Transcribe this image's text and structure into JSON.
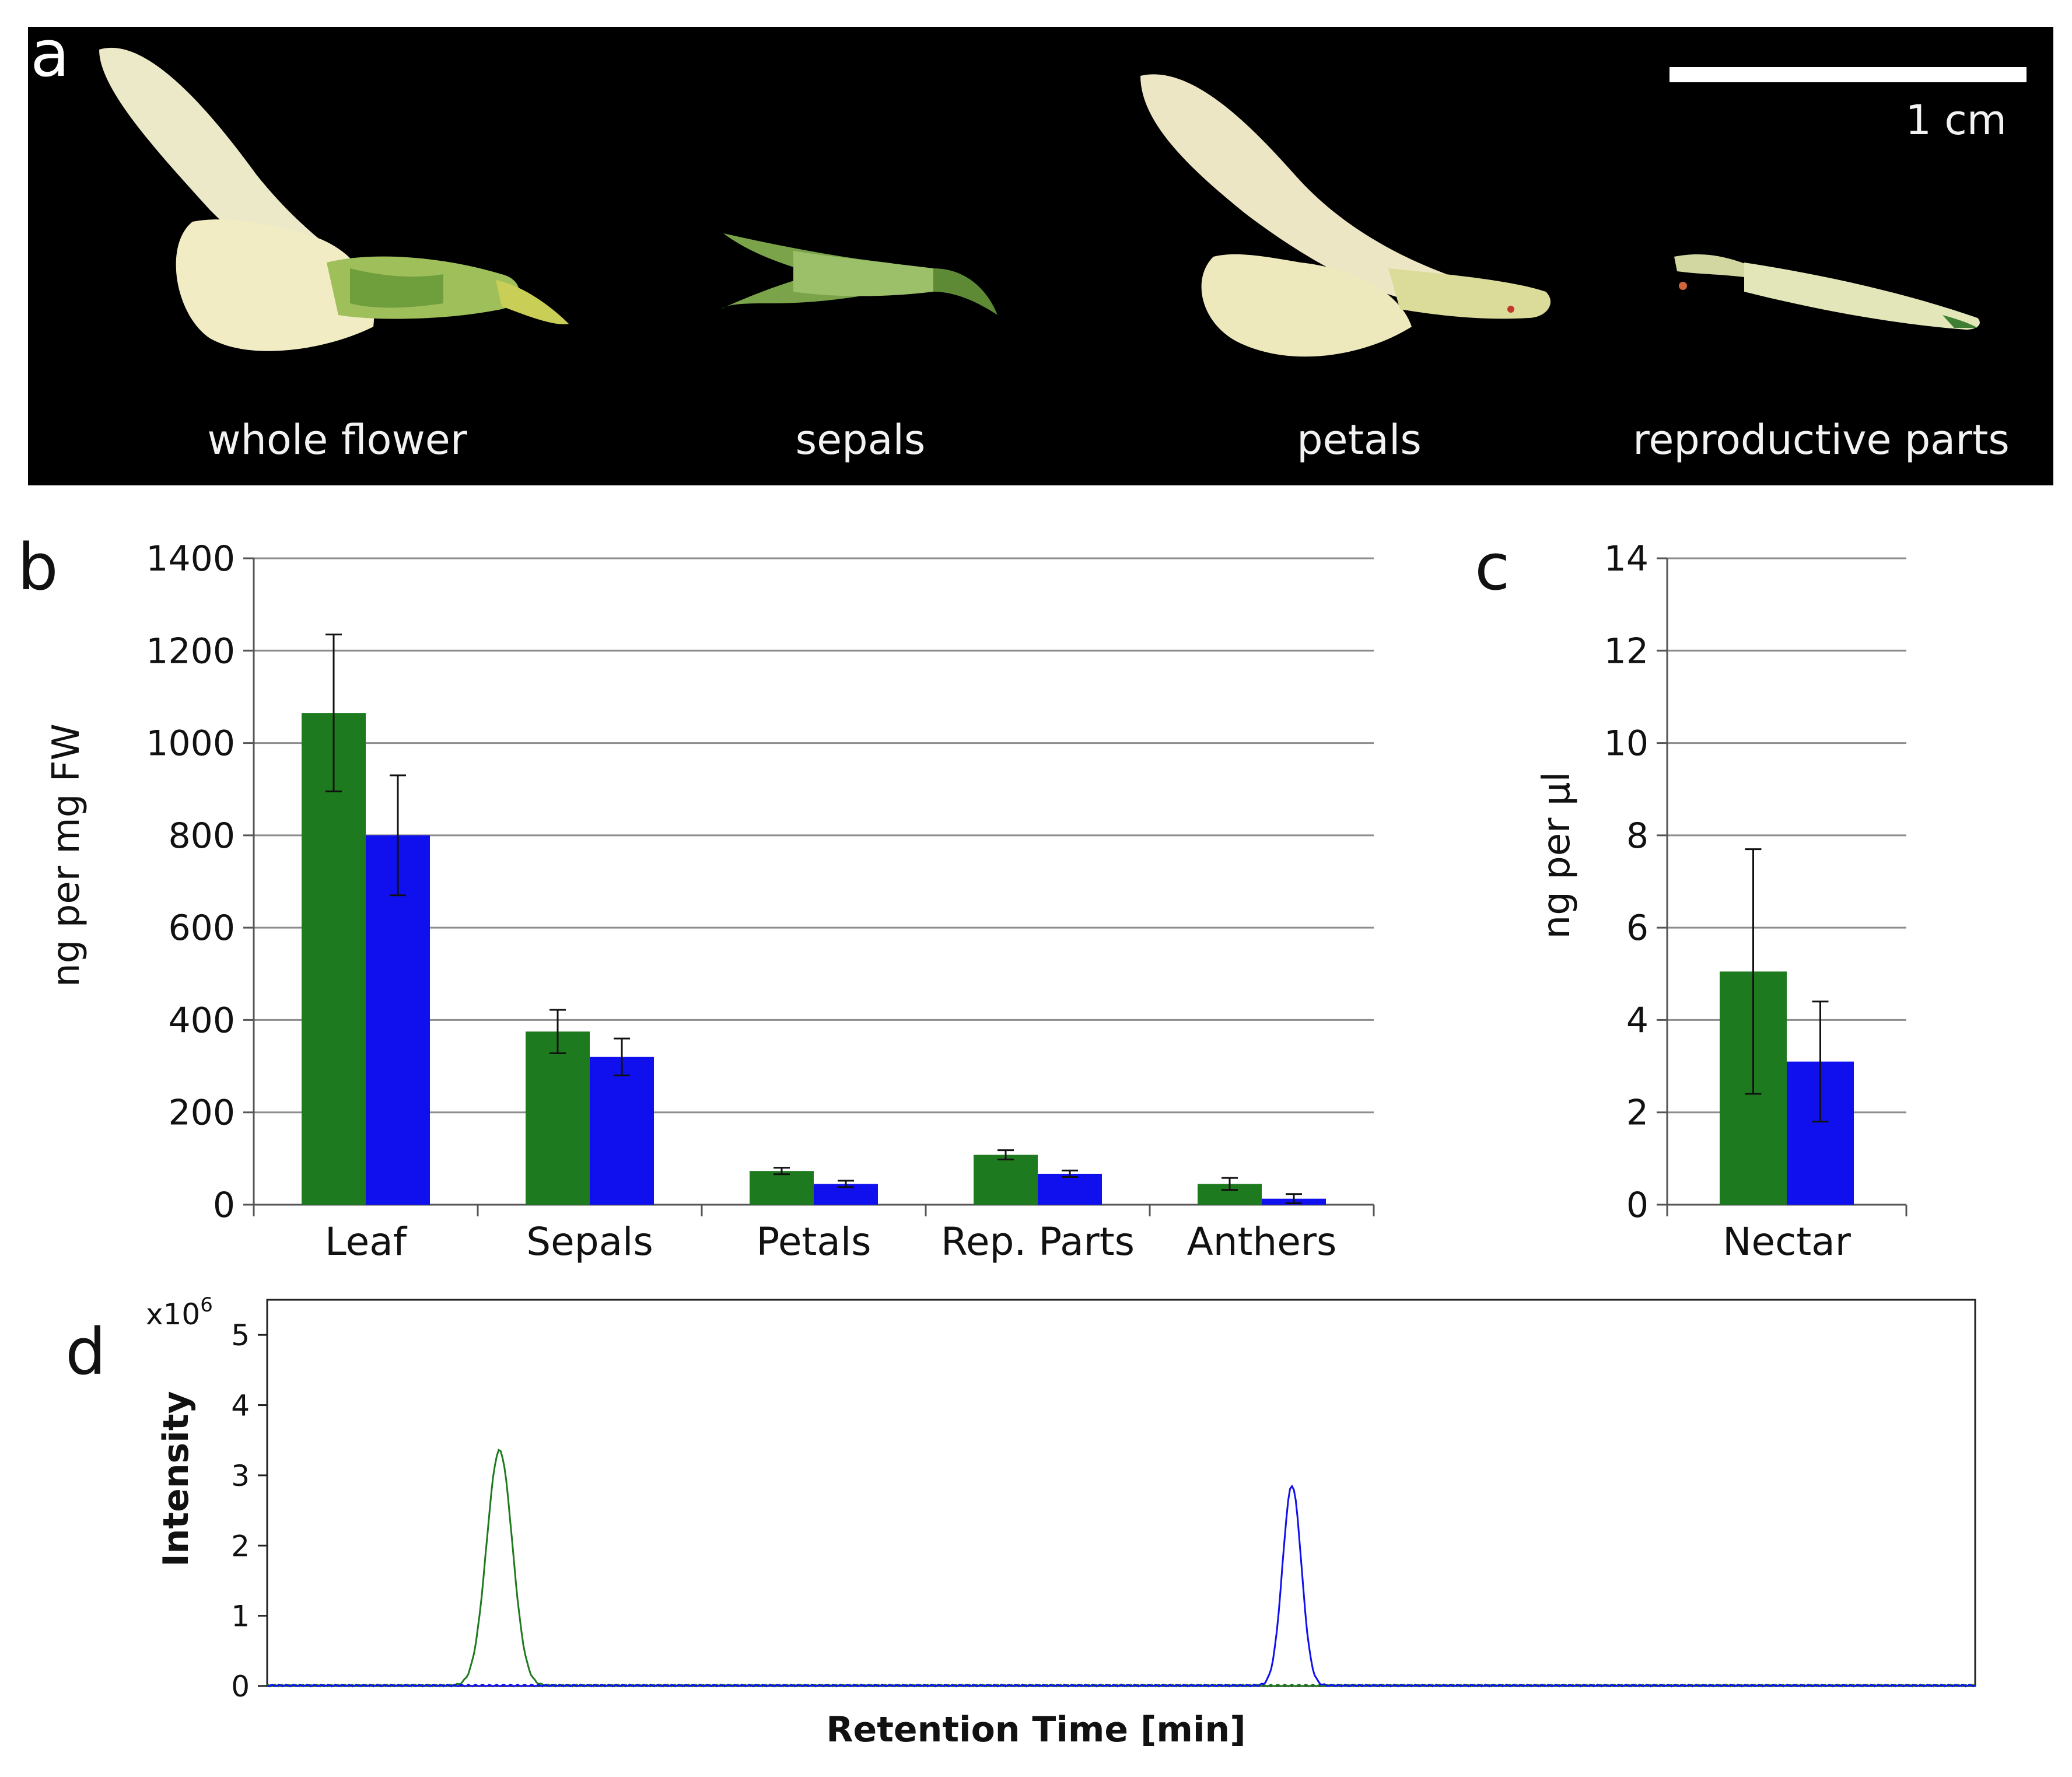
{
  "photo": {
    "panel_label": "a",
    "scale_label": "1 cm",
    "captions": [
      "whole flower",
      "sepals",
      "petals",
      "reproductive parts"
    ]
  },
  "colors": {
    "green": "#1e7a1e",
    "blue": "#1010ee",
    "photo_bg": "#000000",
    "grid": "#8c8c8c"
  },
  "chart_data": [
    {
      "panel": "b",
      "type": "bar",
      "ylabel": "ng per mg FW",
      "ylim": [
        0,
        1400
      ],
      "yticks": [
        0,
        200,
        400,
        600,
        800,
        1000,
        1200,
        1400
      ],
      "grid": true,
      "categories": [
        "Leaf",
        "Sepals",
        "Petals",
        "Rep. Parts",
        "Anthers"
      ],
      "series": [
        {
          "name": "green",
          "values": [
            1065,
            375,
            73,
            108,
            45
          ],
          "errors": [
            170,
            47,
            7,
            10,
            13
          ]
        },
        {
          "name": "blue",
          "values": [
            800,
            320,
            45,
            67,
            13
          ],
          "errors": [
            130,
            40,
            7,
            7,
            10
          ]
        }
      ]
    },
    {
      "panel": "c",
      "type": "bar",
      "ylabel": "ng per µl",
      "ylim": [
        0,
        14
      ],
      "yticks": [
        0,
        2,
        4,
        6,
        8,
        10,
        12,
        14
      ],
      "grid": true,
      "categories": [
        "Nectar"
      ],
      "series": [
        {
          "name": "green",
          "values": [
            5.05
          ],
          "errors": [
            2.65
          ]
        },
        {
          "name": "blue",
          "values": [
            3.1
          ],
          "errors": [
            1.3
          ]
        }
      ]
    },
    {
      "panel": "d",
      "type": "line",
      "ylabel": "Intensity",
      "xlabel": "Retention Time [min]",
      "y_multiplier": "x10",
      "y_exponent": "6",
      "ylim": [
        0,
        5.5
      ],
      "yticks": [
        0,
        1,
        2,
        3,
        4,
        5
      ],
      "xlim": [
        0,
        100
      ],
      "series": [
        {
          "name": "green",
          "peak_center": 13.6,
          "peak_height": 3.35,
          "peak_width": 0.75
        },
        {
          "name": "blue",
          "peak_center": 60.0,
          "peak_height": 2.85,
          "peak_width": 0.55
        }
      ]
    }
  ]
}
